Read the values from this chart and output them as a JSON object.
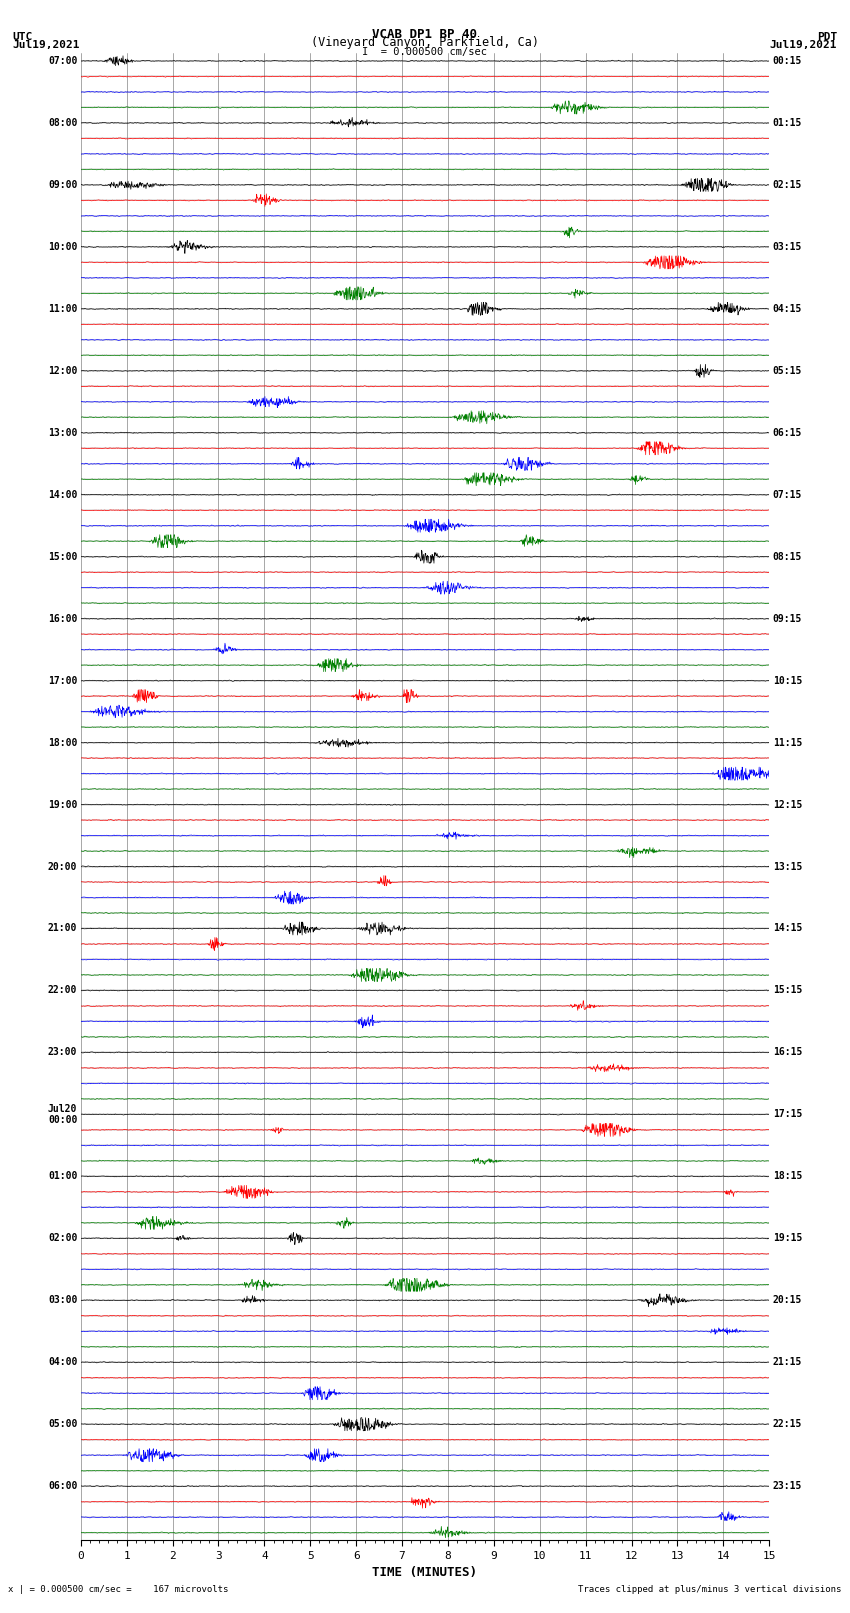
{
  "title_line1": "VCAB DP1 BP 40",
  "title_line2": "(Vineyard Canyon, Parkfield, Ca)",
  "title_line3": "I  = 0.000500 cm/sec",
  "left_header_line1": "UTC",
  "left_header_line2": "Jul19,2021",
  "right_header_line1": "PDT",
  "right_header_line2": "Jul19,2021",
  "xlabel": "TIME (MINUTES)",
  "footer_left": "x | = 0.000500 cm/sec =    167 microvolts",
  "footer_right": "Traces clipped at plus/minus 3 vertical divisions",
  "bg_color": "#ffffff",
  "grid_color": "#666666",
  "trace_colors": [
    "black",
    "red",
    "blue",
    "green"
  ],
  "n_hour_groups": 23,
  "xlim": [
    0,
    15
  ],
  "xticks": [
    0,
    1,
    2,
    3,
    4,
    5,
    6,
    7,
    8,
    9,
    10,
    11,
    12,
    13,
    14,
    15
  ],
  "left_labels_utc": [
    "07:00",
    "08:00",
    "09:00",
    "10:00",
    "11:00",
    "12:00",
    "13:00",
    "14:00",
    "15:00",
    "16:00",
    "17:00",
    "18:00",
    "19:00",
    "20:00",
    "21:00",
    "22:00",
    "23:00",
    "Jul20\n00:00",
    "01:00",
    "02:00",
    "03:00",
    "04:00",
    "05:00",
    "06:00"
  ],
  "right_labels_pdt": [
    "00:15",
    "01:15",
    "02:15",
    "03:15",
    "04:15",
    "05:15",
    "06:15",
    "07:15",
    "08:15",
    "09:15",
    "10:15",
    "11:15",
    "12:15",
    "13:15",
    "14:15",
    "15:15",
    "16:15",
    "17:15",
    "18:15",
    "19:15",
    "20:15",
    "21:15",
    "22:15",
    "23:15"
  ]
}
